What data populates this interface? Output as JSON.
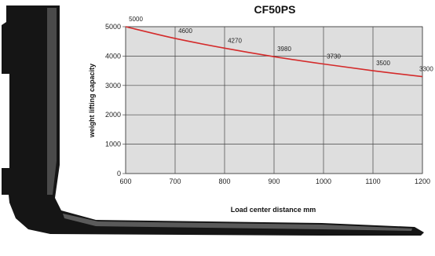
{
  "colors": {
    "plot_bg": "#dedede",
    "grid": "#444444",
    "line": "#d42b2b",
    "fork": "#151515"
  },
  "chart_data": {
    "type": "line",
    "title": "CF50PS",
    "xlabel": "Load center distance mm",
    "ylabel": "weight lifting capacity",
    "x": [
      600,
      700,
      800,
      900,
      1000,
      1100,
      1200
    ],
    "series": [
      {
        "values": [
          5000,
          4600,
          4270,
          3980,
          3730,
          3500,
          3300
        ]
      }
    ],
    "data_labels": [
      "5000",
      "4600",
      "4270",
      "3980",
      "3730",
      "3500",
      "3300"
    ],
    "x_ticks": [
      "600",
      "700",
      "800",
      "900",
      "1000",
      "1100",
      "1200"
    ],
    "y_ticks": [
      "0",
      "1000",
      "2000",
      "3000",
      "4000",
      "5000"
    ],
    "xlim": [
      600,
      1200
    ],
    "ylim": [
      0,
      5000
    ],
    "grid": true,
    "illustration": "forklift-fork-icon"
  }
}
